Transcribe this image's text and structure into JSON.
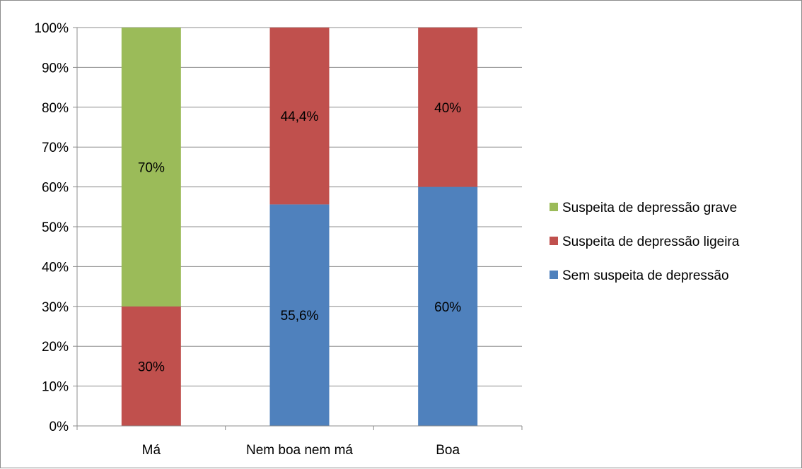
{
  "chart_data": {
    "type": "bar",
    "stacked": true,
    "percent_stacked": true,
    "categories": [
      "Má",
      "Nem boa nem má",
      "Boa"
    ],
    "series": [
      {
        "name": "Sem suspeita de depressão",
        "color": "#4F81BD",
        "values": [
          0,
          55.6,
          60
        ],
        "labels": [
          "",
          "55,6%",
          "60%"
        ]
      },
      {
        "name": "Suspeita de depressão ligeira",
        "color": "#C0504D",
        "values": [
          30,
          44.4,
          40
        ],
        "labels": [
          "30%",
          "44,4%",
          "40%"
        ]
      },
      {
        "name": "Suspeita de depressão grave",
        "color": "#9BBB59",
        "values": [
          70,
          0,
          0
        ],
        "labels": [
          "70%",
          "",
          ""
        ]
      }
    ],
    "ylim": [
      0,
      100
    ],
    "yticks": [
      0,
      10,
      20,
      30,
      40,
      50,
      60,
      70,
      80,
      90,
      100
    ],
    "ytick_labels": [
      "0%",
      "10%",
      "20%",
      "30%",
      "40%",
      "50%",
      "60%",
      "70%",
      "80%",
      "90%",
      "100%"
    ],
    "grid": true,
    "legend": "right",
    "legend_order": [
      "Suspeita de depressão grave",
      "Suspeita de depressão ligeira",
      "Sem suspeita de depressão"
    ],
    "title": "",
    "xlabel": "",
    "ylabel": ""
  }
}
